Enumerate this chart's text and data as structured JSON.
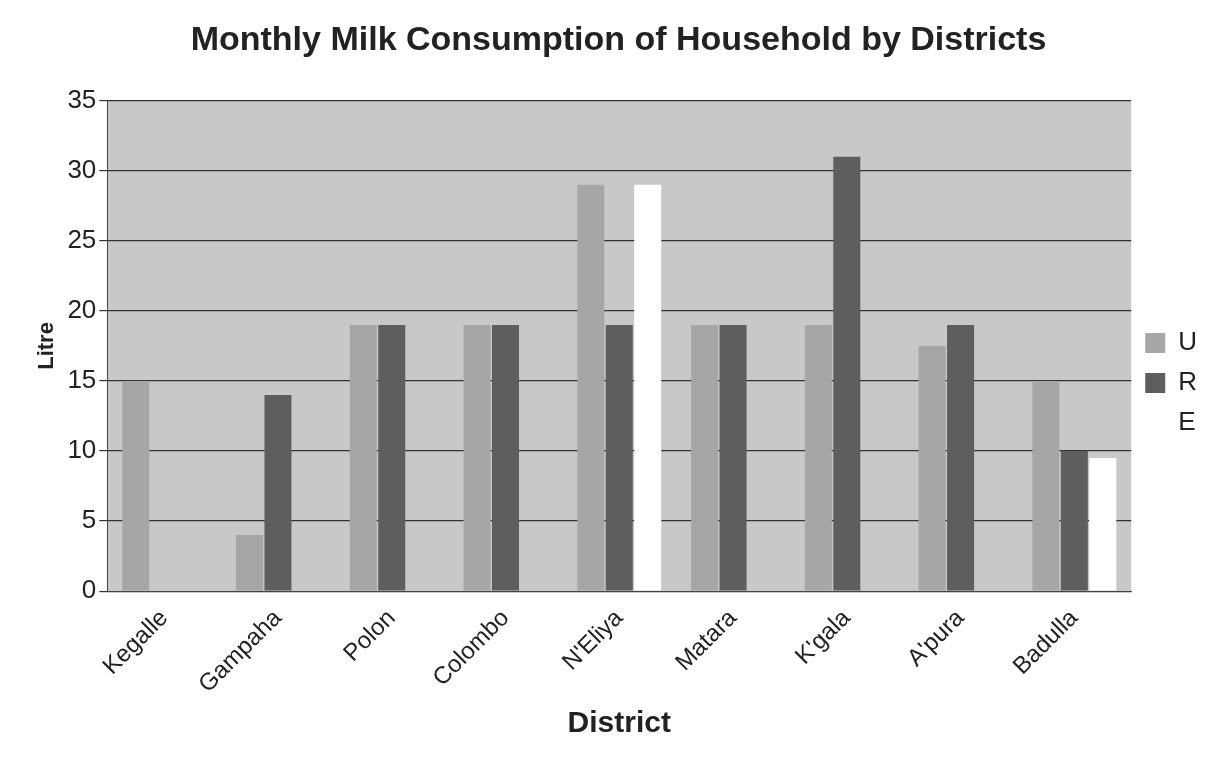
{
  "chart_data": {
    "type": "bar",
    "title": "Monthly Milk Consumption of Household by Districts",
    "xlabel": "District",
    "ylabel": "Litre",
    "categories": [
      "Kegalle",
      "Gampaha",
      "Polon",
      "Colombo",
      "N'Eliya",
      "Matara",
      "K'gala",
      "A'pura",
      "Badulla"
    ],
    "series": [
      {
        "name": "U",
        "color": "#a6a6a6",
        "values": [
          15,
          4,
          19,
          19,
          29,
          19,
          19,
          17.5,
          15
        ]
      },
      {
        "name": "R",
        "color": "#5e5e5e",
        "values": [
          null,
          14,
          19,
          19,
          19,
          19,
          31,
          19,
          10
        ]
      },
      {
        "name": "E",
        "color": "#ffffff",
        "values": [
          null,
          null,
          null,
          null,
          29,
          null,
          null,
          null,
          9.5
        ]
      }
    ],
    "ylim": [
      0,
      35
    ],
    "yticks": [
      0,
      5,
      10,
      15,
      20,
      25,
      30,
      35
    ],
    "grid": "y",
    "legend": "right"
  }
}
